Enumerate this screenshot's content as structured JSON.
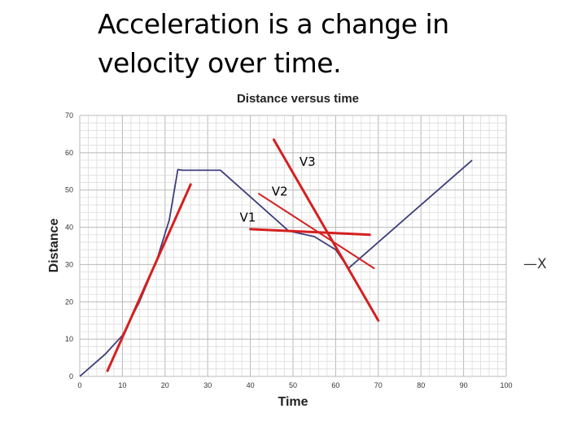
{
  "heading": {
    "line1": "Acceleration is a change in",
    "line2": "velocity over time."
  },
  "chart_data": {
    "type": "line",
    "title": "Distance versus time",
    "xlabel": "Time",
    "ylabel": "Distance",
    "xlim": [
      0,
      100
    ],
    "ylim": [
      0,
      70
    ],
    "xticks": [
      0,
      10,
      20,
      30,
      40,
      50,
      60,
      70,
      80,
      90,
      100
    ],
    "yticks": [
      0,
      10,
      20,
      30,
      40,
      50,
      60,
      70
    ],
    "grid": true,
    "series": [
      {
        "color": "#3d3d7a",
        "points": [
          [
            0,
            0
          ],
          [
            6,
            6
          ],
          [
            10,
            11
          ],
          [
            14,
            20
          ],
          [
            18,
            31
          ],
          [
            21,
            42
          ],
          [
            23,
            55.5
          ],
          [
            24,
            55.3
          ],
          [
            33,
            55.3
          ],
          [
            49,
            39
          ],
          [
            55,
            37.5
          ],
          [
            60,
            34
          ],
          [
            63,
            29
          ]
        ]
      },
      {
        "color": "#3d3d7a",
        "points": [
          [
            63,
            29
          ],
          [
            92,
            58
          ]
        ]
      }
    ],
    "tangent_lines": [
      {
        "label": "V1",
        "color": "#d42020",
        "width": 3,
        "points": [
          [
            6.5,
            1.5
          ],
          [
            26,
            51.5
          ]
        ]
      },
      {
        "label": "V2",
        "color": "#d42020",
        "width": 2,
        "points": [
          [
            42,
            49
          ],
          [
            69,
            29
          ]
        ]
      },
      {
        "label": "",
        "color": "#d42020",
        "width": 3,
        "points": [
          [
            40,
            39.5
          ],
          [
            68,
            38
          ]
        ]
      },
      {
        "label": "V3",
        "color": "#d42020",
        "width": 3,
        "points": [
          [
            45.5,
            63.5
          ],
          [
            70,
            15
          ]
        ]
      }
    ],
    "annotations": [
      {
        "text": "V3",
        "x": 51.5,
        "y": 56.5
      },
      {
        "text": "V2",
        "x": 45,
        "y": 48.5
      },
      {
        "text": "V1",
        "x": 37.5,
        "y": 41.5
      }
    ],
    "side_label": "—X"
  }
}
